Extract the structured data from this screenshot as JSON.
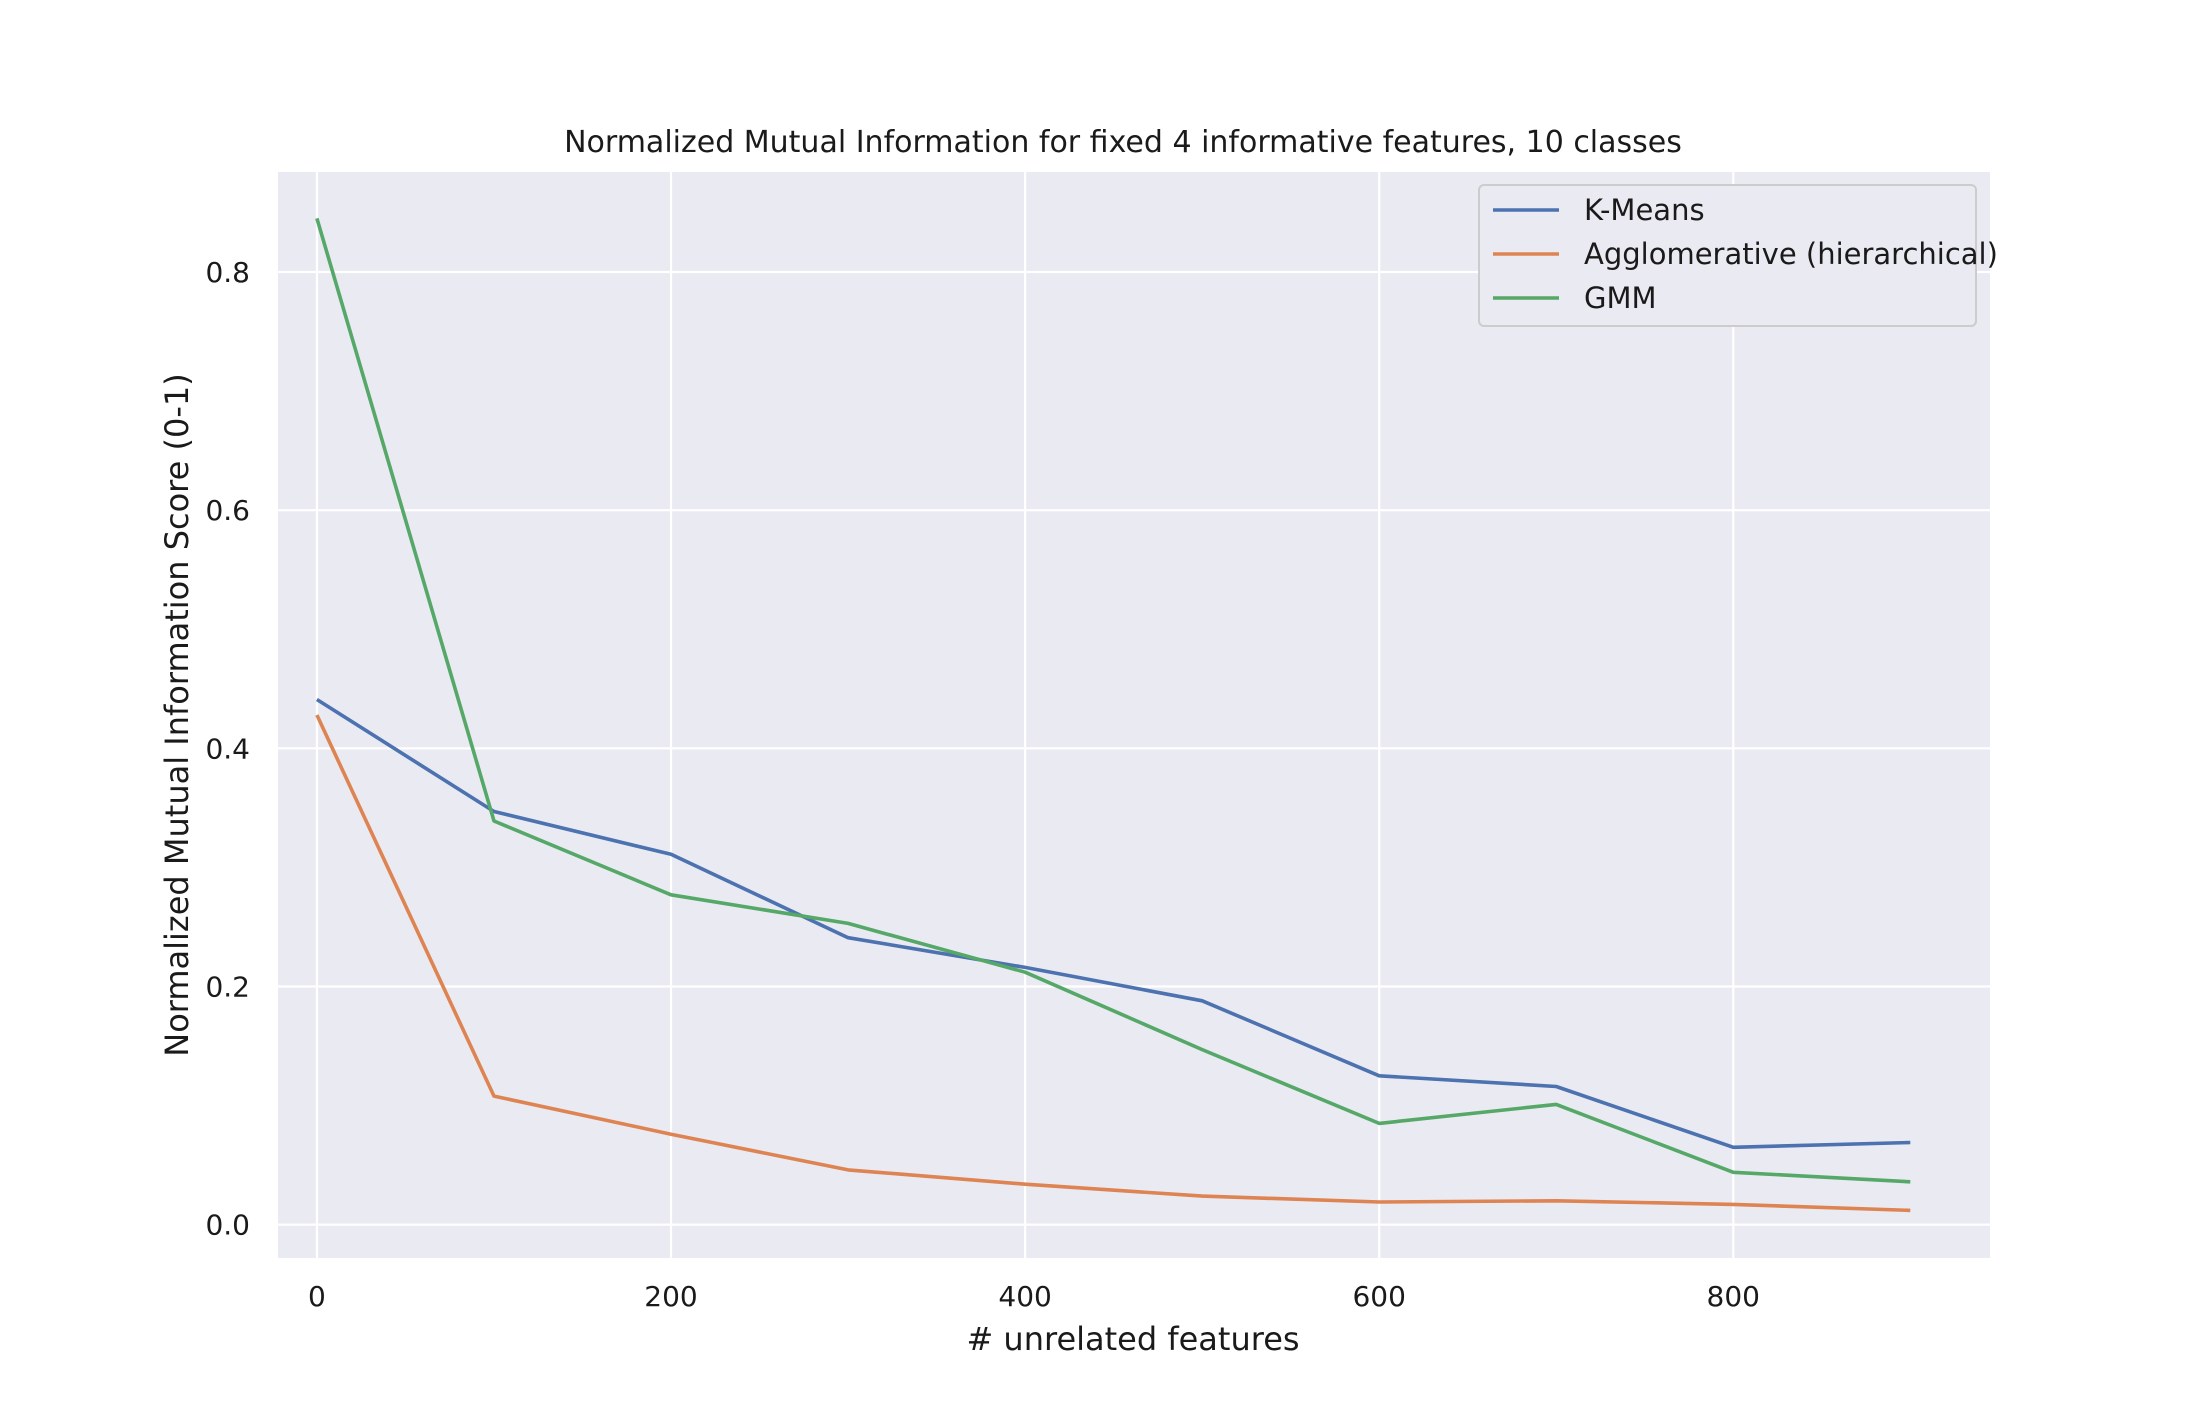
{
  "chart_data": {
    "type": "line",
    "title": "Normalized Mutual Information for fixed 4 informative features, 10 classes",
    "xlabel": "# unrelated features",
    "ylabel": "Normalized Mutual Information Score (0-1)",
    "x": [
      0,
      100,
      200,
      300,
      400,
      500,
      600,
      700,
      800,
      900
    ],
    "xlim": [
      -22,
      945
    ],
    "ylim": [
      -0.028,
      0.884
    ],
    "xticks": [
      0,
      200,
      400,
      600,
      800
    ],
    "yticks": [
      0.0,
      0.2,
      0.4,
      0.6,
      0.8
    ],
    "xtick_labels": [
      "0",
      "200",
      "400",
      "600",
      "800"
    ],
    "ytick_labels": [
      "0.0",
      "0.2",
      "0.4",
      "0.6",
      "0.8"
    ],
    "grid": true,
    "legend_position": "top-right",
    "series": [
      {
        "name": "K-Means",
        "color": "#4c72b0",
        "values": [
          0.441,
          0.347,
          0.311,
          0.241,
          0.216,
          0.188,
          0.125,
          0.116,
          0.065,
          0.069
        ]
      },
      {
        "name": "Agglomerative (hierarchical)",
        "color": "#dd8452",
        "values": [
          0.428,
          0.108,
          0.076,
          0.046,
          0.034,
          0.024,
          0.019,
          0.02,
          0.017,
          0.012
        ]
      },
      {
        "name": "GMM",
        "color": "#55a868",
        "values": [
          0.845,
          0.339,
          0.277,
          0.253,
          0.212,
          0.147,
          0.085,
          0.101,
          0.044,
          0.036
        ]
      }
    ]
  },
  "style": {
    "plot_background": "#eaeaf2",
    "grid_color": "#ffffff",
    "legend_background": "#eaeaf2",
    "legend_border": "#cccccc"
  }
}
